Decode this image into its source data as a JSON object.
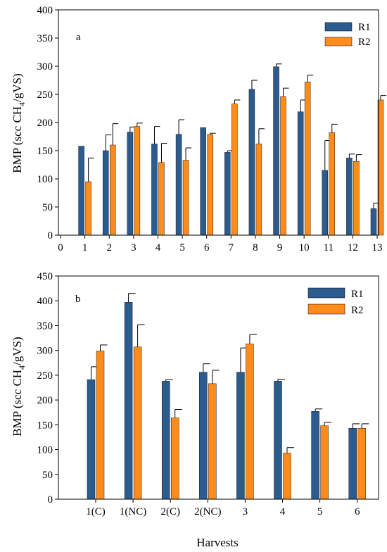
{
  "colors": {
    "r1": "#2b5b8f",
    "r2": "#ff8c1a",
    "axis": "#000000"
  },
  "shared": {
    "xlabel": "Harvests"
  },
  "chart_data": [
    {
      "panel": "a",
      "type": "bar",
      "grouped": true,
      "error_bars": true,
      "x_ticks": [
        "0",
        "1",
        "2",
        "3",
        "4",
        "5",
        "6",
        "7",
        "8",
        "9",
        "10",
        "11",
        "12",
        "13"
      ],
      "categories": [
        "1",
        "2",
        "3",
        "4",
        "5",
        "6",
        "7",
        "8",
        "9",
        "10",
        "11",
        "12",
        "13"
      ],
      "ylabel": {
        "prefix": "BMP (scc CH",
        "sub": "4",
        "suffix": "/gVS)"
      },
      "ylim": [
        0,
        400
      ],
      "y_ticks": [
        0,
        50,
        100,
        150,
        200,
        250,
        300,
        350,
        400
      ],
      "legend_position": "top-right",
      "grid": false,
      "series": [
        {
          "name": "R1",
          "values": [
            158,
            150,
            183,
            162,
            179,
            191,
            147,
            259,
            299,
            219,
            115,
            137,
            47
          ],
          "errors": [
            0,
            28,
            9,
            31,
            26,
            0,
            3,
            16,
            5,
            21,
            53,
            7,
            10
          ]
        },
        {
          "name": "R2",
          "values": [
            95,
            160,
            193,
            129,
            133,
            179,
            233,
            162,
            246,
            272,
            182,
            131,
            240
          ],
          "errors": [
            42,
            38,
            6,
            34,
            22,
            2,
            7,
            27,
            15,
            12,
            15,
            12,
            8
          ]
        }
      ]
    },
    {
      "panel": "b",
      "type": "bar",
      "grouped": true,
      "error_bars": true,
      "categories": [
        "1(C)",
        "1(NC)",
        "2(C)",
        "2(NC)",
        "3",
        "4",
        "5",
        "6"
      ],
      "ylabel": {
        "prefix": "BMP (scc CH",
        "sub": "4",
        "suffix": "/gVS)"
      },
      "ylim": [
        0,
        450
      ],
      "y_ticks": [
        0,
        50,
        100,
        150,
        200,
        250,
        300,
        350,
        400,
        450
      ],
      "legend_position": "top-right",
      "grid": false,
      "series": [
        {
          "name": "R1",
          "values": [
            241,
            397,
            238,
            256,
            256,
            238,
            177,
            143
          ],
          "errors": [
            26,
            18,
            3,
            17,
            49,
            4,
            5,
            9
          ]
        },
        {
          "name": "R2",
          "values": [
            299,
            307,
            164,
            233,
            313,
            93,
            148,
            143
          ],
          "errors": [
            12,
            45,
            17,
            27,
            19,
            11,
            7,
            9
          ]
        }
      ]
    }
  ]
}
